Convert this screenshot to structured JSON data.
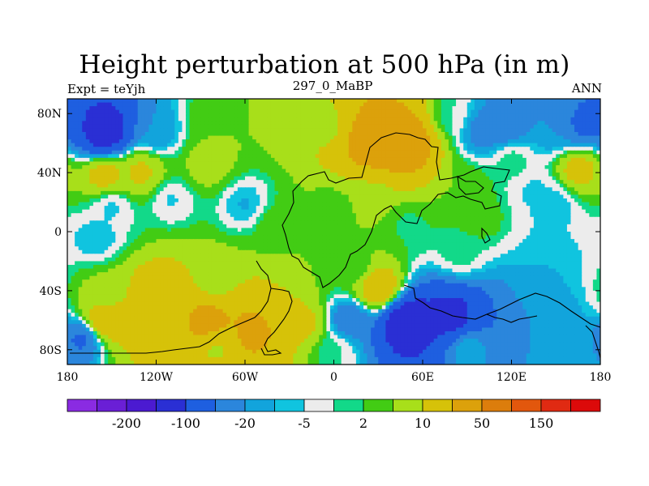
{
  "chart_data": {
    "type": "heatmap",
    "title": "Height perturbation at 500 hPa (in m)",
    "left_label": "Expt = teYjh",
    "center_label": "297_0_MaBP",
    "right_label": "ANN",
    "x_range": [
      -180,
      180
    ],
    "y_range": [
      -90,
      90
    ],
    "x_ticks": [
      {
        "value": -180,
        "label": "180"
      },
      {
        "value": -120,
        "label": "120W"
      },
      {
        "value": -60,
        "label": "60W"
      },
      {
        "value": 0,
        "label": "0"
      },
      {
        "value": 60,
        "label": "60E"
      },
      {
        "value": 120,
        "label": "120E"
      },
      {
        "value": 180,
        "label": "180"
      }
    ],
    "y_ticks": [
      {
        "value": 80,
        "label": "80N"
      },
      {
        "value": 40,
        "label": "40N"
      },
      {
        "value": 0,
        "label": "0"
      },
      {
        "value": -40,
        "label": "40S"
      },
      {
        "value": -80,
        "label": "80S"
      }
    ],
    "colorbar_colors": [
      "#8a2be2",
      "#6a1fd6",
      "#4b1ad1",
      "#2a2fd4",
      "#1e5fe0",
      "#2b86dc",
      "#12a4dc",
      "#10c4df",
      "#ececec",
      "#12d989",
      "#42cc14",
      "#a8df1a",
      "#d6c209",
      "#dca10b",
      "#dc7d0c",
      "#e2570d",
      "#e02a12",
      "#dc0a0a"
    ],
    "colorbar_labels": [
      "-200",
      "-100",
      "-20",
      "-5",
      "2",
      "10",
      "50",
      "150"
    ],
    "blobs": [
      {
        "lon": -155,
        "lat": 68,
        "value": -80
      },
      {
        "lon": -120,
        "lat": 68,
        "value": -10
      },
      {
        "lon": -80,
        "lat": 75,
        "value": 10
      },
      {
        "lon": -5,
        "lat": 72,
        "value": 15
      },
      {
        "lon": 25,
        "lat": 62,
        "value": 80
      },
      {
        "lon": 48,
        "lat": 60,
        "value": 90
      },
      {
        "lon": 80,
        "lat": 78,
        "value": 2
      },
      {
        "lon": 100,
        "lat": 68,
        "value": -15
      },
      {
        "lon": 115,
        "lat": 72,
        "value": -20
      },
      {
        "lon": 150,
        "lat": 68,
        "value": -10
      },
      {
        "lon": 168,
        "lat": 72,
        "value": -25
      },
      {
        "lon": -155,
        "lat": 38,
        "value": 30
      },
      {
        "lon": -130,
        "lat": 40,
        "value": 25
      },
      {
        "lon": -85,
        "lat": 45,
        "value": 15
      },
      {
        "lon": 120,
        "lat": 48,
        "value": 5
      },
      {
        "lon": 165,
        "lat": 42,
        "value": 30
      },
      {
        "lon": 135,
        "lat": 28,
        "value": -3
      },
      {
        "lon": 150,
        "lat": 20,
        "value": -5
      },
      {
        "lon": -150,
        "lat": 18,
        "value": -4
      },
      {
        "lon": -110,
        "lat": 22,
        "value": -3
      },
      {
        "lon": -60,
        "lat": 18,
        "value": -6
      },
      {
        "lon": -40,
        "lat": 5,
        "value": 8
      },
      {
        "lon": 0,
        "lat": 15,
        "value": 6
      },
      {
        "lon": 25,
        "lat": 20,
        "value": 12
      },
      {
        "lon": 50,
        "lat": 5,
        "value": 4
      },
      {
        "lon": 100,
        "lat": 10,
        "value": 8
      },
      {
        "lon": 90,
        "lat": 30,
        "value": 10
      },
      {
        "lon": -160,
        "lat": -5,
        "value": -5
      },
      {
        "lon": -10,
        "lat": -10,
        "value": 10
      },
      {
        "lon": 15,
        "lat": -25,
        "value": 5
      },
      {
        "lon": 85,
        "lat": -15,
        "value": 4
      },
      {
        "lon": 145,
        "lat": -20,
        "value": -5
      },
      {
        "lon": -155,
        "lat": -42,
        "value": 12
      },
      {
        "lon": -120,
        "lat": -40,
        "value": 30
      },
      {
        "lon": -80,
        "lat": -32,
        "value": 10
      },
      {
        "lon": 30,
        "lat": -38,
        "value": 40
      },
      {
        "lon": 140,
        "lat": -40,
        "value": -6
      },
      {
        "lon": -155,
        "lat": -60,
        "value": 40
      },
      {
        "lon": -110,
        "lat": -60,
        "value": 45
      },
      {
        "lon": -85,
        "lat": -62,
        "value": 70
      },
      {
        "lon": -55,
        "lat": -68,
        "value": 60
      },
      {
        "lon": -20,
        "lat": -62,
        "value": 25
      },
      {
        "lon": 10,
        "lat": -60,
        "value": -20
      },
      {
        "lon": 50,
        "lat": -62,
        "value": -90
      },
      {
        "lon": 80,
        "lat": -58,
        "value": -70
      },
      {
        "lon": 110,
        "lat": -60,
        "value": -20
      },
      {
        "lon": 150,
        "lat": -58,
        "value": -8
      },
      {
        "lon": -170,
        "lat": -72,
        "value": -25
      },
      {
        "lon": -80,
        "lat": -78,
        "value": 15
      },
      {
        "lon": 0,
        "lat": -80,
        "value": 3
      },
      {
        "lon": 90,
        "lat": -78,
        "value": -3
      },
      {
        "lon": 160,
        "lat": -80,
        "value": -5
      }
    ]
  }
}
